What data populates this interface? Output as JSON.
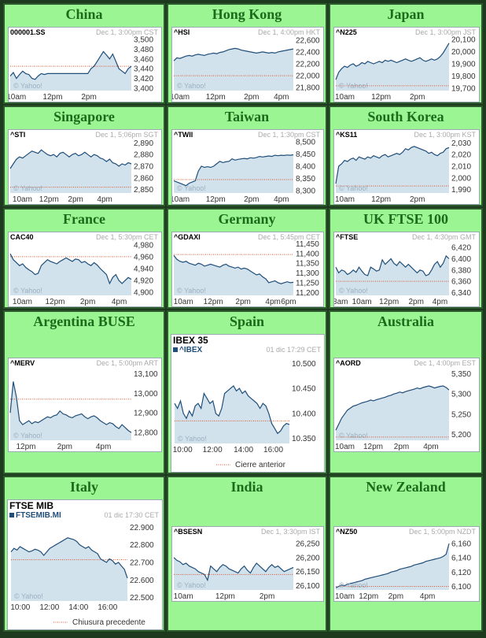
{
  "colors": {
    "line": "#1f4e79",
    "fill": "#d2e2ec",
    "prev": "#d9532b",
    "title": "#1b6b1b",
    "panel": "#9cf593"
  },
  "watermark": "© Yahoo!",
  "chart_data": [
    {
      "type": "line",
      "region": "China",
      "symbol": "000001.SS",
      "stamp": "Dec 1, 3:00pm CST",
      "ylim": [
        3395,
        3505
      ],
      "yticks": [
        "3,500",
        "3,480",
        "3,460",
        "3,440",
        "3,420",
        "3,400"
      ],
      "ytick_values": [
        3500,
        3480,
        3460,
        3440,
        3420,
        3400
      ],
      "xticks": [
        "10am",
        "12pm",
        "2pm"
      ],
      "xtick_pos": [
        0.05,
        0.35,
        0.65
      ],
      "prev_close": 3445,
      "values": [
        3425,
        3432,
        3420,
        3428,
        3435,
        3430,
        3428,
        3420,
        3418,
        3425,
        3430,
        3428,
        3430,
        3430,
        3430,
        3430,
        3430,
        3430,
        3430,
        3430,
        3430,
        3430,
        3430,
        3430,
        3430,
        3430,
        3440,
        3445,
        3455,
        3465,
        3475,
        3468,
        3460,
        3470,
        3455,
        3440,
        3435,
        3430,
        3440,
        3445
      ]
    },
    {
      "type": "line",
      "region": "Hong Kong",
      "symbol": "^HSI",
      "stamp": "Dec 1, 4:00pm HKT",
      "ylim": [
        21750,
        22650
      ],
      "yticks": [
        "22,600",
        "22,400",
        "22,200",
        "22,000",
        "21,800"
      ],
      "ytick_values": [
        22600,
        22400,
        22200,
        22000,
        21800
      ],
      "xticks": [
        "10am",
        "12pm",
        "2pm",
        "4pm"
      ],
      "xtick_pos": [
        0.05,
        0.35,
        0.65,
        0.9
      ],
      "prev_close": 22000,
      "values": [
        22250,
        22300,
        22290,
        22310,
        22330,
        22340,
        22330,
        22350,
        22360,
        22350,
        22340,
        22360,
        22370,
        22380,
        22370,
        22390,
        22400,
        22420,
        22440,
        22450,
        22460,
        22450,
        22430,
        22420,
        22410,
        22400,
        22390,
        22380,
        22390,
        22400,
        22390,
        22380,
        22390,
        22380,
        22400,
        22410,
        22420,
        22430,
        22440,
        22450
      ]
    },
    {
      "type": "line",
      "region": "Japan",
      "symbol": "^N225",
      "stamp": "Dec 1, 3:00pm JST",
      "ylim": [
        19680,
        20120
      ],
      "yticks": [
        "20,100",
        "20,000",
        "19,900",
        "19,800",
        "19,700"
      ],
      "ytick_values": [
        20100,
        20000,
        19900,
        19800,
        19700
      ],
      "xticks": [
        "10am",
        "12pm",
        "2pm"
      ],
      "xtick_pos": [
        0.08,
        0.4,
        0.72
      ],
      "prev_close": 19720,
      "values": [
        19770,
        19830,
        19860,
        19880,
        19870,
        19890,
        19900,
        19880,
        19890,
        19910,
        19900,
        19920,
        19910,
        19900,
        19910,
        19920,
        19910,
        19930,
        19920,
        19930,
        19920,
        19910,
        19920,
        19930,
        19940,
        19930,
        19920,
        19930,
        19940,
        19950,
        19930,
        19920,
        19930,
        19940,
        19930,
        19940,
        19960,
        19990,
        20030,
        20070
      ]
    },
    {
      "type": "line",
      "region": "Singapore",
      "symbol": "^STI",
      "stamp": "Dec 1, 5:06pm SGT",
      "ylim": [
        2847,
        2893
      ],
      "yticks": [
        "2,890",
        "2,880",
        "2,870",
        "2,860",
        "2,850"
      ],
      "ytick_values": [
        2890,
        2880,
        2870,
        2860,
        2850
      ],
      "xticks": [
        "10am",
        "12pm",
        "2pm",
        "4pm"
      ],
      "xtick_pos": [
        0.1,
        0.32,
        0.54,
        0.78
      ],
      "prev_close": 2852,
      "values": [
        2868,
        2872,
        2876,
        2878,
        2877,
        2879,
        2881,
        2883,
        2882,
        2881,
        2884,
        2882,
        2880,
        2879,
        2880,
        2878,
        2881,
        2882,
        2880,
        2878,
        2880,
        2881,
        2879,
        2880,
        2882,
        2880,
        2878,
        2880,
        2879,
        2877,
        2876,
        2874,
        2876,
        2873,
        2872,
        2870,
        2872,
        2871,
        2873,
        2872
      ]
    },
    {
      "type": "line",
      "region": "Taiwan",
      "symbol": "^TWII",
      "stamp": "Dec 1, 1:30pm CST",
      "ylim": [
        8290,
        8510
      ],
      "yticks": [
        "8,500",
        "8,450",
        "8,400",
        "8,350",
        "8,300"
      ],
      "ytick_values": [
        8500,
        8450,
        8400,
        8350,
        8300
      ],
      "xticks": [
        "10am",
        "12pm",
        "2pm",
        "4pm"
      ],
      "xtick_pos": [
        0.05,
        0.35,
        0.65,
        0.9
      ],
      "prev_close": 8345,
      "values": [
        8340,
        8335,
        8330,
        8325,
        8320,
        8330,
        8335,
        8340,
        8380,
        8400,
        8395,
        8398,
        8395,
        8400,
        8410,
        8420,
        8415,
        8418,
        8420,
        8430,
        8425,
        8428,
        8430,
        8432,
        8430,
        8435,
        8433,
        8436,
        8440,
        8438,
        8440,
        8442,
        8440,
        8445,
        8443,
        8445,
        8444,
        8446,
        8445,
        8447
      ]
    },
    {
      "type": "line",
      "region": "South Korea",
      "symbol": "^KS11",
      "stamp": "Dec 1, 3:00pm KST",
      "ylim": [
        1987,
        2033
      ],
      "yticks": [
        "2,030",
        "2,020",
        "2,010",
        "2,000",
        "1,990"
      ],
      "ytick_values": [
        2030,
        2020,
        2010,
        2000,
        1990
      ],
      "xticks": [
        "10am",
        "12pm",
        "2pm"
      ],
      "xtick_pos": [
        0.08,
        0.4,
        0.72
      ],
      "prev_close": 1993,
      "values": [
        1995,
        2010,
        2012,
        2015,
        2014,
        2016,
        2017,
        2015,
        2018,
        2017,
        2016,
        2018,
        2017,
        2019,
        2018,
        2017,
        2019,
        2020,
        2018,
        2019,
        2020,
        2021,
        2020,
        2022,
        2025,
        2024,
        2026,
        2027,
        2026,
        2025,
        2024,
        2023,
        2021,
        2022,
        2020,
        2019,
        2021,
        2022,
        2025,
        2026
      ]
    },
    {
      "type": "line",
      "region": "France",
      "symbol": "CAC40",
      "stamp": "Dec 1, 5:30pm CET",
      "ylim": [
        4895,
        4985
      ],
      "yticks": [
        "4,980",
        "4,960",
        "4,940",
        "4,920",
        "4,900"
      ],
      "ytick_values": [
        4980,
        4960,
        4940,
        4920,
        4900
      ],
      "xticks": [
        "10am",
        "12pm",
        "2pm",
        "4pm"
      ],
      "xtick_pos": [
        0.1,
        0.37,
        0.64,
        0.9
      ],
      "prev_close": 4960,
      "values": [
        4965,
        4955,
        4950,
        4945,
        4948,
        4942,
        4938,
        4935,
        4930,
        4932,
        4945,
        4950,
        4955,
        4952,
        4950,
        4948,
        4952,
        4955,
        4958,
        4955,
        4952,
        4956,
        4955,
        4950,
        4952,
        4948,
        4945,
        4950,
        4946,
        4940,
        4935,
        4930,
        4915,
        4925,
        4930,
        4920,
        4915,
        4920,
        4925,
        4922
      ]
    },
    {
      "type": "line",
      "region": "Germany",
      "symbol": "^GDAXI",
      "stamp": "Dec 1, 5:45pm CET",
      "ylim": [
        11185,
        11460
      ],
      "yticks": [
        "11,450",
        "11,400",
        "11,350",
        "11,300",
        "11,250",
        "11,200"
      ],
      "ytick_values": [
        11450,
        11400,
        11350,
        11300,
        11250,
        11200
      ],
      "xticks": [
        "10am",
        "12pm",
        "2pm",
        "4pm",
        "6pm"
      ],
      "xtick_pos": [
        0.08,
        0.33,
        0.58,
        0.83,
        0.96
      ],
      "prev_close": 11395,
      "values": [
        11390,
        11370,
        11360,
        11355,
        11360,
        11350,
        11345,
        11340,
        11350,
        11345,
        11335,
        11340,
        11345,
        11340,
        11335,
        11330,
        11340,
        11345,
        11335,
        11330,
        11325,
        11330,
        11320,
        11325,
        11320,
        11310,
        11300,
        11290,
        11295,
        11280,
        11270,
        11250,
        11255,
        11260,
        11250,
        11245,
        11250,
        11255,
        11250,
        11252
      ]
    },
    {
      "type": "line",
      "region": "UK FTSE 100",
      "symbol": "^FTSE",
      "stamp": "Dec 1, 4:30pm GMT",
      "ylim": [
        6335,
        6430
      ],
      "yticks": [
        "6,420",
        "6,400",
        "6,380",
        "6,360",
        "6,340"
      ],
      "ytick_values": [
        6420,
        6400,
        6380,
        6360,
        6340
      ],
      "xticks": [
        "8am",
        "10am",
        "12pm",
        "2pm",
        "4pm"
      ],
      "xtick_pos": [
        0.04,
        0.23,
        0.47,
        0.71,
        0.92
      ],
      "prev_close": 6360,
      "values": [
        6385,
        6375,
        6380,
        6378,
        6372,
        6375,
        6380,
        6376,
        6385,
        6378,
        6372,
        6370,
        6385,
        6382,
        6378,
        6380,
        6398,
        6390,
        6395,
        6400,
        6392,
        6388,
        6395,
        6390,
        6385,
        6390,
        6385,
        6380,
        6375,
        6380,
        6378,
        6370,
        6372,
        6380,
        6390,
        6395,
        6385,
        6392,
        6405,
        6400
      ]
    },
    {
      "type": "line",
      "region": "Argentina BUSE",
      "symbol": "^MERV",
      "stamp": "Dec 1, 5:00pm ART",
      "ylim": [
        12760,
        13130
      ],
      "yticks": [
        "13,100",
        "13,000",
        "12,900",
        "12,800"
      ],
      "ytick_values": [
        13100,
        13000,
        12900,
        12800
      ],
      "xticks": [
        "12pm",
        "2pm",
        "4pm"
      ],
      "xtick_pos": [
        0.13,
        0.45,
        0.77
      ],
      "prev_close": 12970,
      "values": [
        12900,
        13060,
        12980,
        12860,
        12840,
        12850,
        12860,
        12845,
        12855,
        12850,
        12860,
        12870,
        12880,
        12875,
        12885,
        12890,
        12910,
        12895,
        12890,
        12880,
        12875,
        12885,
        12890,
        12895,
        12880,
        12870,
        12880,
        12885,
        12875,
        12860,
        12850,
        12840,
        12850,
        12845,
        12830,
        12820,
        12840,
        12825,
        12810,
        12800
      ]
    },
    {
      "type": "line",
      "region": "Spain",
      "title": "IBEX 35",
      "symbol": "^IBEX",
      "stamp": "01 dic 17:29 CET",
      "legend": "Cierre anterior",
      "ylim": [
        10340,
        10510
      ],
      "yticks": [
        "10.500",
        "10.450",
        "10.400",
        "10.350"
      ],
      "ytick_values": [
        10500,
        10450,
        10400,
        10350
      ],
      "xticks": [
        "10:00",
        "12:00",
        "14:00",
        "16:00"
      ],
      "xtick_pos": [
        0.07,
        0.33,
        0.6,
        0.86
      ],
      "prev_close": 10385,
      "values": [
        10420,
        10410,
        10425,
        10400,
        10390,
        10405,
        10395,
        10415,
        10420,
        10410,
        10440,
        10430,
        10420,
        10425,
        10400,
        10395,
        10410,
        10440,
        10445,
        10450,
        10455,
        10445,
        10450,
        10440,
        10445,
        10435,
        10430,
        10425,
        10420,
        10410,
        10420,
        10415,
        10400,
        10380,
        10370,
        10360,
        10365,
        10375,
        10380,
        10378
      ]
    },
    {
      "type": "line",
      "region": "Australia",
      "symbol": "^AORD",
      "stamp": "Dec 1, 4:00pm EST",
      "ylim": [
        5185,
        5365
      ],
      "yticks": [
        "5,350",
        "5,300",
        "5,250",
        "5,200"
      ],
      "ytick_values": [
        5350,
        5300,
        5250,
        5200
      ],
      "xticks": [
        "10am",
        "12pm",
        "2pm",
        "4pm"
      ],
      "xtick_pos": [
        0.08,
        0.33,
        0.58,
        0.84
      ],
      "prev_close": 5193,
      "values": [
        5210,
        5225,
        5240,
        5250,
        5260,
        5265,
        5270,
        5272,
        5275,
        5278,
        5280,
        5282,
        5285,
        5283,
        5286,
        5288,
        5290,
        5292,
        5295,
        5297,
        5300,
        5302,
        5305,
        5303,
        5306,
        5308,
        5310,
        5312,
        5315,
        5313,
        5316,
        5318,
        5320,
        5318,
        5315,
        5317,
        5319,
        5320,
        5316,
        5310
      ]
    },
    {
      "type": "line",
      "region": "Italy",
      "title": "FTSE MIB",
      "symbol": "FTSEMIB.MI",
      "stamp": "01 dic 17:30 CET",
      "legend": "Chiusura precedente",
      "ylim": [
        22480,
        22920
      ],
      "yticks": [
        "22.900",
        "22.800",
        "22.700",
        "22.600",
        "22.500"
      ],
      "ytick_values": [
        22900,
        22800,
        22700,
        22600,
        22500
      ],
      "xticks": [
        "10:00",
        "12:00",
        "14:00",
        "16:00"
      ],
      "xtick_pos": [
        0.08,
        0.33,
        0.58,
        0.83
      ],
      "prev_close": 22715,
      "values": [
        22760,
        22780,
        22770,
        22790,
        22780,
        22770,
        22760,
        22765,
        22775,
        22770,
        22760,
        22740,
        22760,
        22780,
        22790,
        22800,
        22810,
        22820,
        22830,
        22840,
        22835,
        22830,
        22820,
        22800,
        22790,
        22780,
        22790,
        22770,
        22760,
        22750,
        22720,
        22710,
        22700,
        22720,
        22710,
        22690,
        22700,
        22680,
        22660,
        22610
      ]
    },
    {
      "type": "line",
      "region": "India",
      "symbol": "^BSESN",
      "stamp": "Dec 1, 3:30pm IST",
      "ylim": [
        26085,
        26275
      ],
      "yticks": [
        "26,250",
        "26,200",
        "26,150",
        "26,100"
      ],
      "ytick_values": [
        26250,
        26200,
        26150,
        26100
      ],
      "xticks": [
        "10am",
        "12pm",
        "2pm"
      ],
      "xtick_pos": [
        0.08,
        0.43,
        0.78
      ],
      "prev_close": 26140,
      "values": [
        26200,
        26190,
        26185,
        26175,
        26180,
        26170,
        26165,
        26160,
        26150,
        26145,
        26140,
        26120,
        26170,
        26160,
        26150,
        26165,
        26175,
        26170,
        26160,
        26155,
        26150,
        26145,
        26160,
        26170,
        26155,
        26145,
        26165,
        26180,
        26170,
        26160,
        26150,
        26165,
        26175,
        26165,
        26170,
        26160,
        26150,
        26155,
        26160,
        26165
      ]
    },
    {
      "type": "line",
      "region": "New Zealand",
      "symbol": "^NZ50",
      "stamp": "Dec 1, 5:00pm NZDT",
      "ylim": [
        6095,
        6170
      ],
      "yticks": [
        "6,160",
        "6,140",
        "6,120",
        "6,100"
      ],
      "ytick_values": [
        6160,
        6140,
        6120,
        6100
      ],
      "xticks": [
        "10am",
        "12pm",
        "2pm",
        "4pm"
      ],
      "xtick_pos": [
        0.08,
        0.29,
        0.53,
        0.81
      ],
      "prev_close": 6100,
      "values": [
        6098,
        6100,
        6102,
        6101,
        6103,
        6104,
        6105,
        6106,
        6107,
        6108,
        6110,
        6111,
        6112,
        6113,
        6114,
        6115,
        6116,
        6117,
        6118,
        6120,
        6121,
        6122,
        6124,
        6125,
        6126,
        6127,
        6128,
        6130,
        6131,
        6132,
        6133,
        6135,
        6136,
        6137,
        6138,
        6139,
        6140,
        6142,
        6145,
        6160
      ]
    }
  ]
}
